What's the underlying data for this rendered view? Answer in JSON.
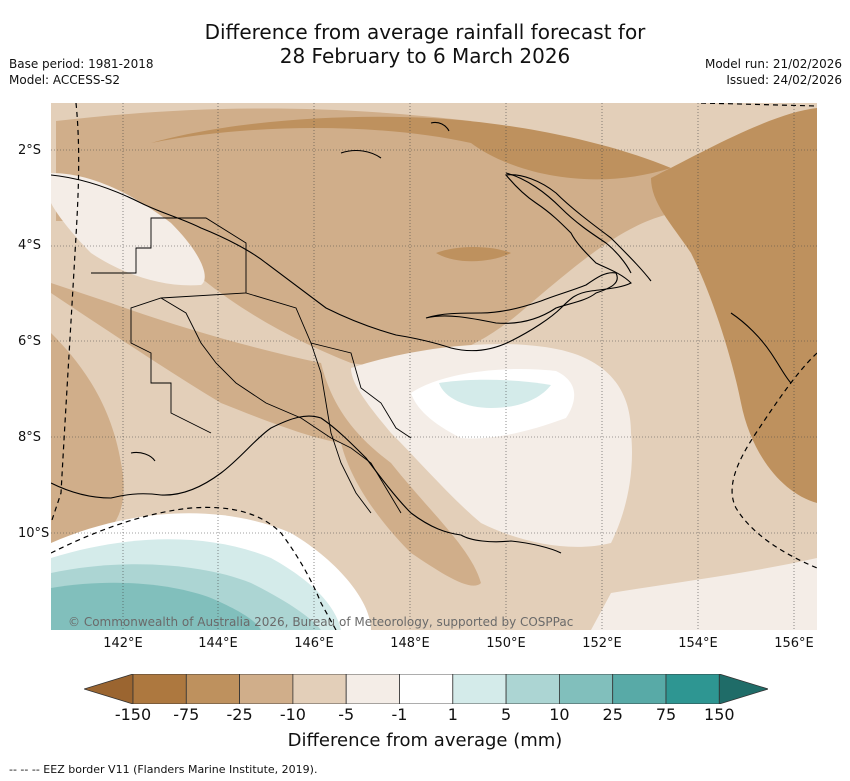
{
  "title": {
    "line1": "Difference from average rainfall forecast for",
    "line2": "28 February to 6 March 2026"
  },
  "meta_left": {
    "base_period": "Base period: 1981-2018",
    "model": "Model: ACCESS-S2"
  },
  "meta_right": {
    "model_run": "Model run: 21/02/2026",
    "issued": "Issued: 24/02/2026"
  },
  "map": {
    "copyright": "© Commonwealth of Australia 2026, Bureau of Meteorology, supported by COSPPac",
    "lat_labels": [
      "2°S",
      "4°S",
      "6°S",
      "8°S",
      "10°S"
    ],
    "lon_labels": [
      "142°E",
      "144°E",
      "146°E",
      "148°E",
      "150°E",
      "152°E",
      "154°E",
      "156°E"
    ]
  },
  "colorbar": {
    "title": "Difference from average (mm)",
    "ticks": [
      "-150",
      "-75",
      "-25",
      "-10",
      "-5",
      "-1",
      "1",
      "5",
      "10",
      "25",
      "75",
      "150"
    ],
    "colors": [
      "#9b6530",
      "#ad783f",
      "#be915e",
      "#d0ae8a",
      "#e3cfb9",
      "#f4ede7",
      "#ffffff",
      "#d4ebea",
      "#acd5d3",
      "#81bfbc",
      "#58aaa7",
      "#2e9692",
      "#1f6c68"
    ]
  },
  "footer": {
    "eez_legend": "-- -- -- EEZ border V11 (Flanders Marine Institute, 2019)."
  }
}
